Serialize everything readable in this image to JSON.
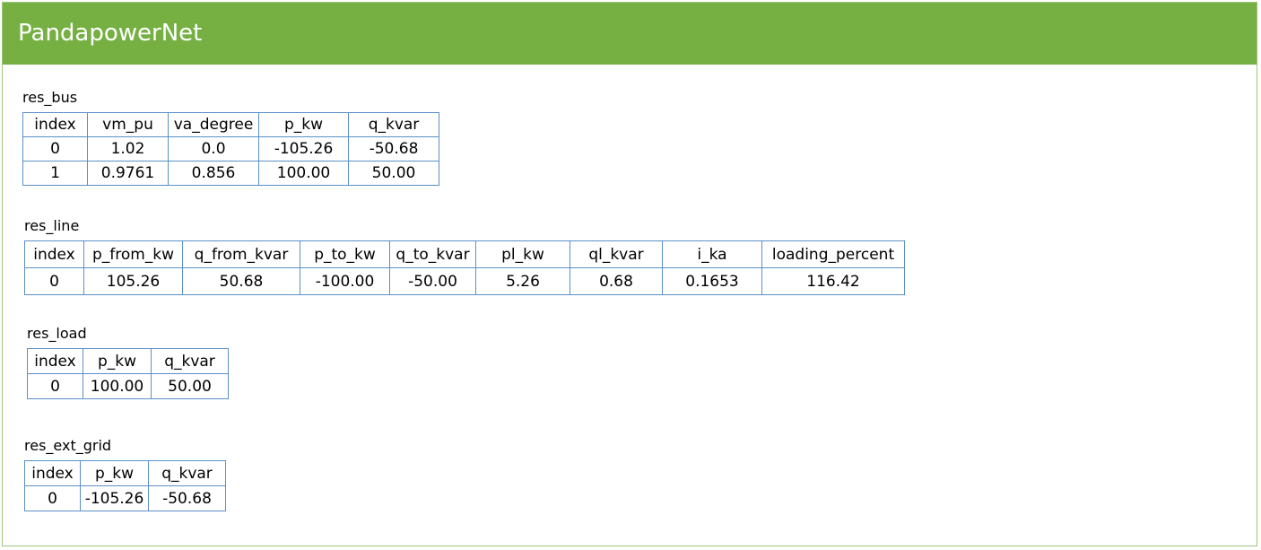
{
  "header": {
    "title": "PandapowerNet"
  },
  "tables": {
    "res_bus": {
      "label": "res_bus",
      "columns": [
        "index",
        "vm_pu",
        "va_degree",
        "p_kw",
        "q_kvar"
      ],
      "rows": [
        [
          "0",
          "1.02",
          "0.0",
          "-105.26",
          "-50.68"
        ],
        [
          "1",
          "0.9761",
          "0.856",
          "100.00",
          "50.00"
        ]
      ]
    },
    "res_line": {
      "label": "res_line",
      "columns": [
        "index",
        "p_from_kw",
        "q_from_kvar",
        "p_to_kw",
        "q_to_kvar",
        "pl_kw",
        "ql_kvar",
        "i_ka",
        "loading_percent"
      ],
      "rows": [
        [
          "0",
          "105.26",
          "50.68",
          "-100.00",
          "-50.00",
          "5.26",
          "0.68",
          "0.1653",
          "116.42"
        ]
      ]
    },
    "res_load": {
      "label": "res_load",
      "columns": [
        "index",
        "p_kw",
        "q_kvar"
      ],
      "rows": [
        [
          "0",
          "100.00",
          "50.00"
        ]
      ]
    },
    "res_ext_grid": {
      "label": "res_ext_grid",
      "columns": [
        "index",
        "p_kw",
        "q_kvar"
      ],
      "rows": [
        [
          "0",
          "-105.26",
          "-50.68"
        ]
      ]
    }
  }
}
